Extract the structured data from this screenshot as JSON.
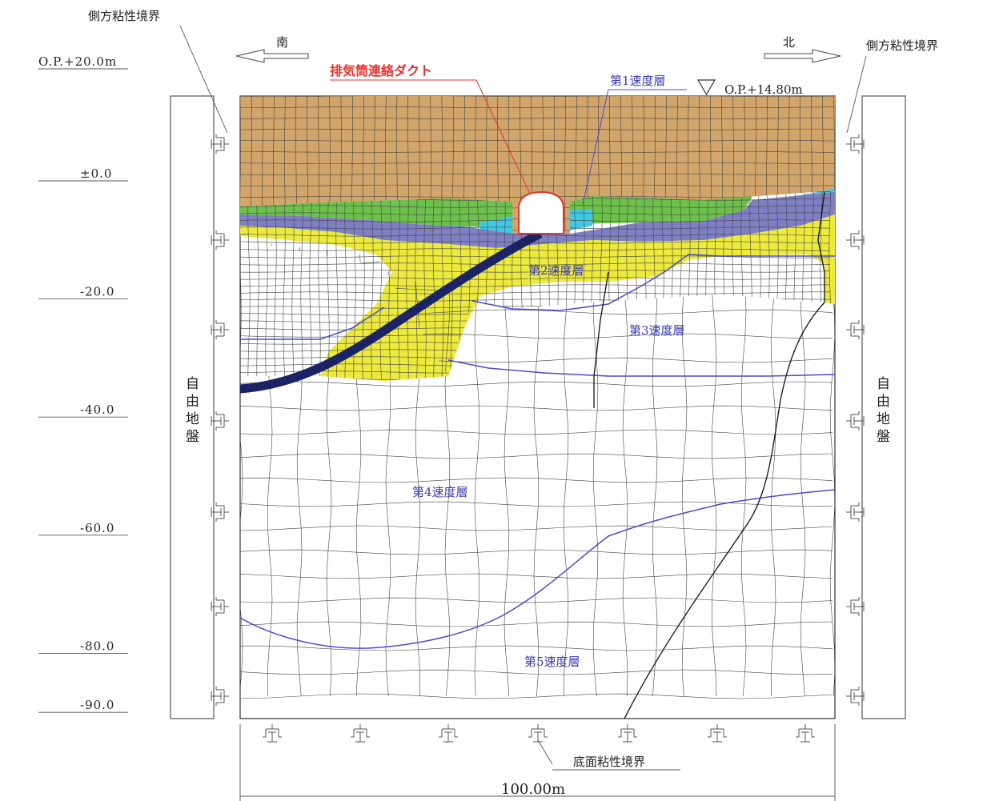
{
  "labels": {
    "side_boundary_left": "側方粘性境界",
    "side_boundary_right": "側方粘性境界",
    "south": "南",
    "north": "北",
    "duct": "排気筒連絡ダクト",
    "layer1": "第1速度層",
    "layer2": "第2速度層",
    "layer3": "第3速度層",
    "layer4": "第4速度層",
    "layer5": "第5速度層",
    "surface_level": "O.P.+14.80m",
    "free_ground_left": [
      "自",
      "由",
      "地",
      "盤"
    ],
    "free_ground_right": [
      "自",
      "由",
      "地",
      "盤"
    ],
    "bottom_boundary": "底面粘性境界",
    "width": "100.00m"
  },
  "elevations": [
    {
      "text": "O.P.+20.0m",
      "value": 20
    },
    {
      "text": "±0.0",
      "value": 0
    },
    {
      "text": "-20.0",
      "value": -20
    },
    {
      "text": "-40.0",
      "value": -40
    },
    {
      "text": "-60.0",
      "value": -60
    },
    {
      "text": "-80.0",
      "value": -80
    },
    {
      "text": "-90.0",
      "value": -90
    }
  ],
  "colors": {
    "layer1": "#d2a56b",
    "layer2_green": "#6cc24a",
    "layer2_purple": "#7f7fc4",
    "layer2_yellow": "#ecea3c",
    "layer_cyan": "#3fc9e4",
    "fault": "#1b2266",
    "layer_line": "#4a4ad0",
    "duct_label": "#e8322e",
    "mesh": "#444444"
  },
  "icons": {
    "damper": "dashpot-icon",
    "arrow": "direction-arrow-icon",
    "ground_level": "triangle-marker-icon"
  }
}
